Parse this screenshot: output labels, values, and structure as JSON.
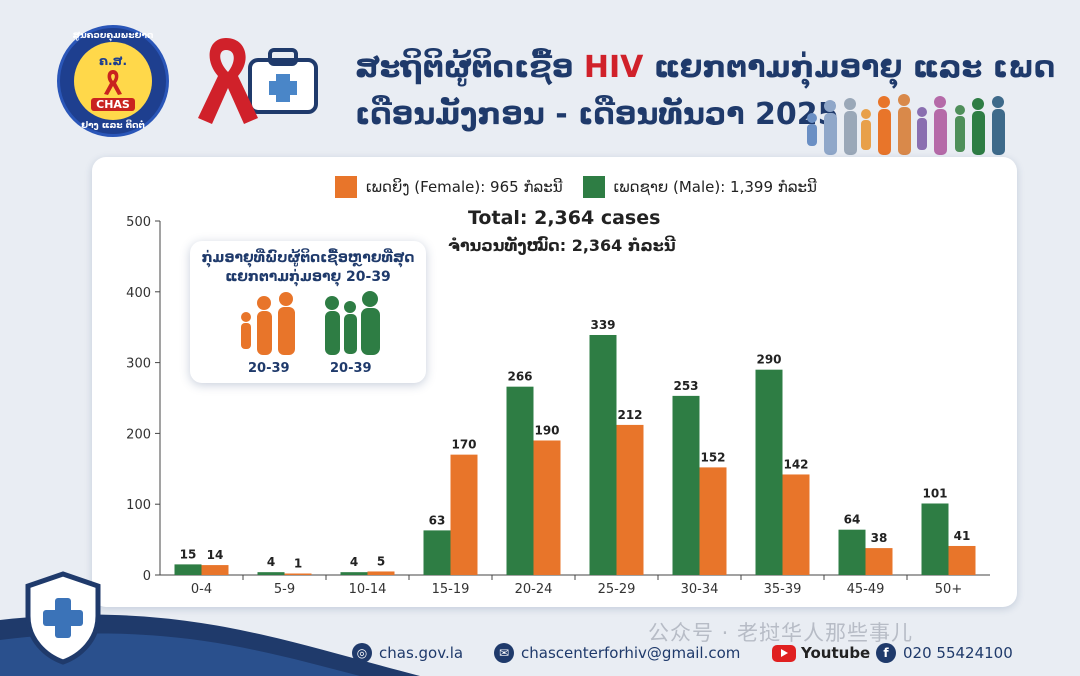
{
  "header": {
    "title_line1_prefix": "ສະຖິຕິຜູ້ຕິດເຊື້ອ ",
    "title_line1_highlight": "HIV",
    "title_line1_suffix": " ແຍກຕາມກຸ່ມອາຍຸ ແລະ ເພດ",
    "title_line2": "ເດືອນມັງກອນ - ເດືອນທັນວາ 2025"
  },
  "logo": {
    "ring_text_top": "ສູນຄວບຄຸມພະຍາດ",
    "ring_text_bottom": "ຢາງ ແລະ ຕິດຕໍ່",
    "year": "ຄ.ສ.",
    "abbr": "CHAS"
  },
  "colors": {
    "female": "#e8752a",
    "male": "#2e7d44",
    "navy": "#1f3a6b",
    "red": "#d0212a"
  },
  "chart_data": {
    "type": "bar",
    "categories": [
      "0-4",
      "5-9",
      "10-14",
      "15-19",
      "20-24",
      "25-29",
      "30-34",
      "35-39",
      "45-49",
      "50+"
    ],
    "series": [
      {
        "name": "ເພດຊາຍ (Male): 1,399 ກໍລະນີ",
        "color": "#2e7d44",
        "values": [
          15,
          4,
          4,
          63,
          266,
          339,
          253,
          290,
          64,
          101
        ]
      },
      {
        "name": "ເພດຍິງ (Female): 965 ກໍລະນີ",
        "color": "#e8752a",
        "values": [
          14,
          1,
          5,
          170,
          190,
          212,
          152,
          142,
          38,
          41
        ]
      }
    ],
    "ylim": [
      0,
      500
    ],
    "yticks": [
      0,
      100,
      200,
      300,
      400,
      500
    ],
    "legend": "top",
    "total_en": "Total: 2,364 cases",
    "total_lo": "ຈຳນວນທັງໝົດ: 2,364 ກໍລະນີ"
  },
  "callout": {
    "title": "ກຸ່ມອາຍຸທີ່ພົບຜູ້ຕິດເຊື້ອຫຼາຍທີ່ສຸດ ແຍກຕາມກຸ່ມອາຍຸ 20-39",
    "female_label": "20-39",
    "male_label": "20-39"
  },
  "footer": {
    "website": "chas.gov.la",
    "email": "chascenterforhiv@gmail.com",
    "youtube": "Youtube",
    "phone": "020 55424100",
    "watermark": "公众号 · 老挝华人那些事儿"
  }
}
